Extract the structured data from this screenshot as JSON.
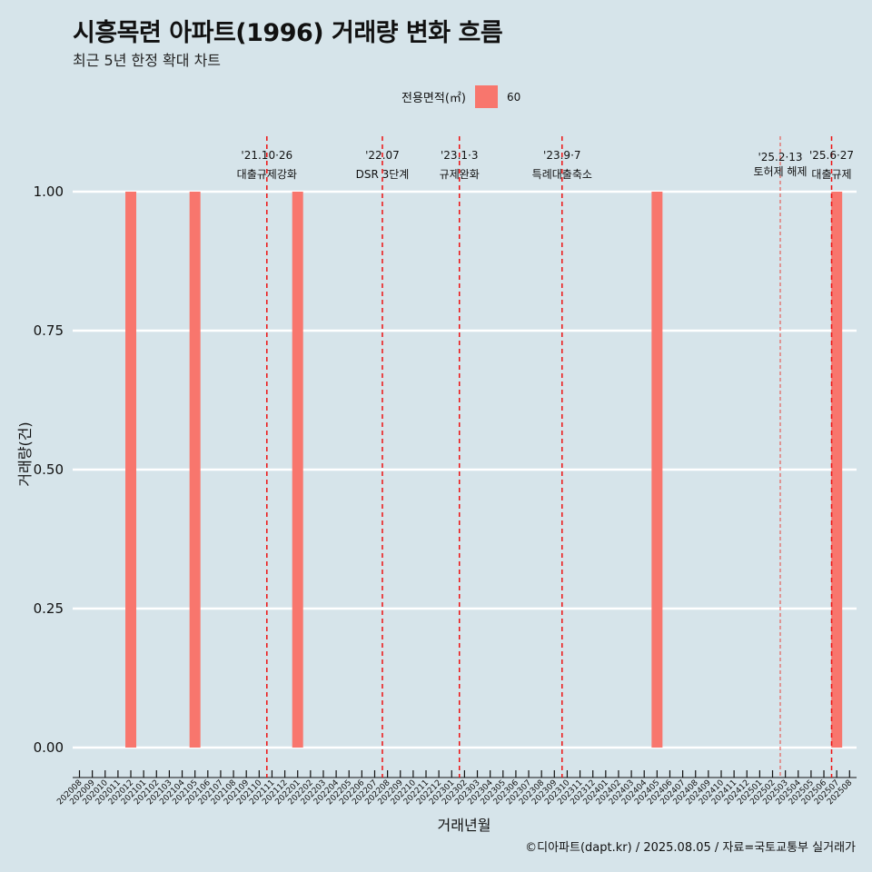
{
  "title": "시흥목련 아파트(1996) 거래량 변화 흐름",
  "subtitle": "최근 5년 한정 확대 차트",
  "legend": {
    "title": "전용면적(㎡)",
    "label": "60",
    "color": "#f8766d"
  },
  "caption": "©디아파트(dapt.kr) / 2025.08.05 / 자료=국토교통부 실거래가",
  "chart_data": {
    "type": "bar",
    "title": "시흥목련 아파트(1996) 거래량 변화 흐름",
    "subtitle": "최근 5년 한정 확대 차트",
    "xlabel": "거래년월",
    "ylabel": "거래량(건)",
    "ylim": [
      0,
      1
    ],
    "yticks": [
      "0.00",
      "0.25",
      "0.50",
      "0.75",
      "1.00"
    ],
    "grid": true,
    "legend_position": "top",
    "categories": [
      "202008",
      "202009",
      "202010",
      "202011",
      "202012",
      "202101",
      "202102",
      "202103",
      "202104",
      "202105",
      "202106",
      "202107",
      "202108",
      "202109",
      "202110",
      "202111",
      "202112",
      "202201",
      "202202",
      "202203",
      "202204",
      "202205",
      "202206",
      "202207",
      "202208",
      "202209",
      "202210",
      "202211",
      "202212",
      "202301",
      "202302",
      "202303",
      "202304",
      "202305",
      "202306",
      "202307",
      "202308",
      "202309",
      "202310",
      "202311",
      "202312",
      "202401",
      "202402",
      "202403",
      "202404",
      "202405",
      "202406",
      "202407",
      "202408",
      "202409",
      "202410",
      "202411",
      "202412",
      "202501",
      "202502",
      "202503",
      "202504",
      "202505",
      "202506",
      "202507",
      "202508"
    ],
    "series": [
      {
        "name": "60",
        "color": "#f8766d",
        "points": [
          {
            "x": "202012",
            "y": 1
          },
          {
            "x": "202105",
            "y": 1
          },
          {
            "x": "202201",
            "y": 1
          },
          {
            "x": "202405",
            "y": 1
          },
          {
            "x": "202507",
            "y": 1
          }
        ]
      }
    ],
    "events": [
      {
        "x": 2021.81,
        "line1": "'21.10·26",
        "line2": "대출규제강화",
        "style": "major"
      },
      {
        "x": 2022.71,
        "line1": "'22.07",
        "line2": "DSR 3단계",
        "style": "major"
      },
      {
        "x": 2023.31,
        "line1": "'23.1·3",
        "line2": "규제완화",
        "style": "major"
      },
      {
        "x": 2024.11,
        "line1": "'23.9·7",
        "line2": "특례대출축소",
        "style": "major"
      },
      {
        "x": 2025.81,
        "line1": "'25.2·13",
        "line2": "토허제 해제",
        "style": "minor"
      },
      {
        "x": 2026.21,
        "line1": "'25.6·27",
        "line2": "대출규제",
        "style": "major"
      }
    ]
  }
}
